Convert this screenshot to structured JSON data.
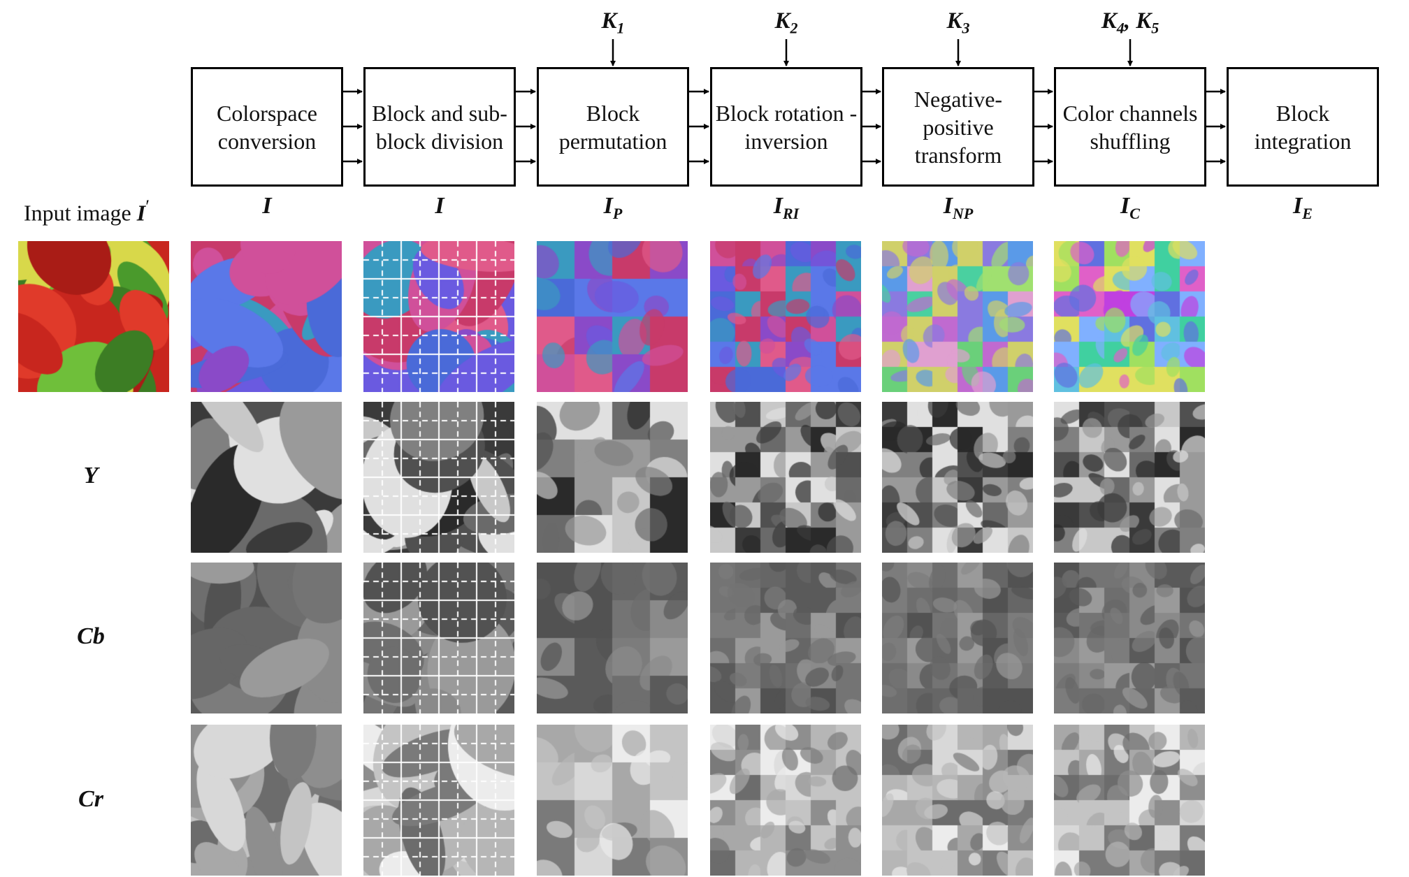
{
  "pipeline": {
    "steps": [
      {
        "label": "Colorspace conversion",
        "lines": [
          "Colorspace",
          "conversion"
        ],
        "key": "",
        "key_sub": "",
        "stage": "I",
        "stage_sub": ""
      },
      {
        "label": "Block and sub-block division",
        "lines": [
          "Block and sub-",
          "block division"
        ],
        "key": "",
        "key_sub": "",
        "stage": "I",
        "stage_sub": ""
      },
      {
        "label": "Block permutation",
        "lines": [
          "Block",
          "permutation"
        ],
        "key": "K",
        "key_sub": "1",
        "stage": "I",
        "stage_sub": "P"
      },
      {
        "label": "Block rotation-inversion",
        "lines": [
          "Block rotation -",
          "inversion"
        ],
        "key": "K",
        "key_sub": "2",
        "stage": "I",
        "stage_sub": "RI"
      },
      {
        "label": "Negative-positive transform",
        "lines": [
          "Negative-",
          "positive",
          "transform"
        ],
        "key": "K",
        "key_sub": "3",
        "stage": "I",
        "stage_sub": "NP"
      },
      {
        "label": "Color channels shuffling",
        "lines": [
          "Color channels",
          "shuffling"
        ],
        "key": "K4, K5",
        "key_sub": "",
        "stage": "I",
        "stage_sub": "C"
      },
      {
        "label": "Block integration",
        "lines": [
          "Block",
          "integration"
        ],
        "key": "",
        "key_sub": "",
        "stage": "I",
        "stage_sub": "E"
      }
    ]
  },
  "input": {
    "label": "Input image",
    "symbol": "I",
    "prime": "′"
  },
  "rows": [
    {
      "name": "color",
      "label": ""
    },
    {
      "name": "Y",
      "label": "Y"
    },
    {
      "name": "Cb",
      "label": "Cb"
    },
    {
      "name": "Cr",
      "label": "Cr"
    }
  ],
  "colors": {
    "border": "#000000",
    "grid_line": "#ffffff",
    "background": "#ffffff"
  }
}
